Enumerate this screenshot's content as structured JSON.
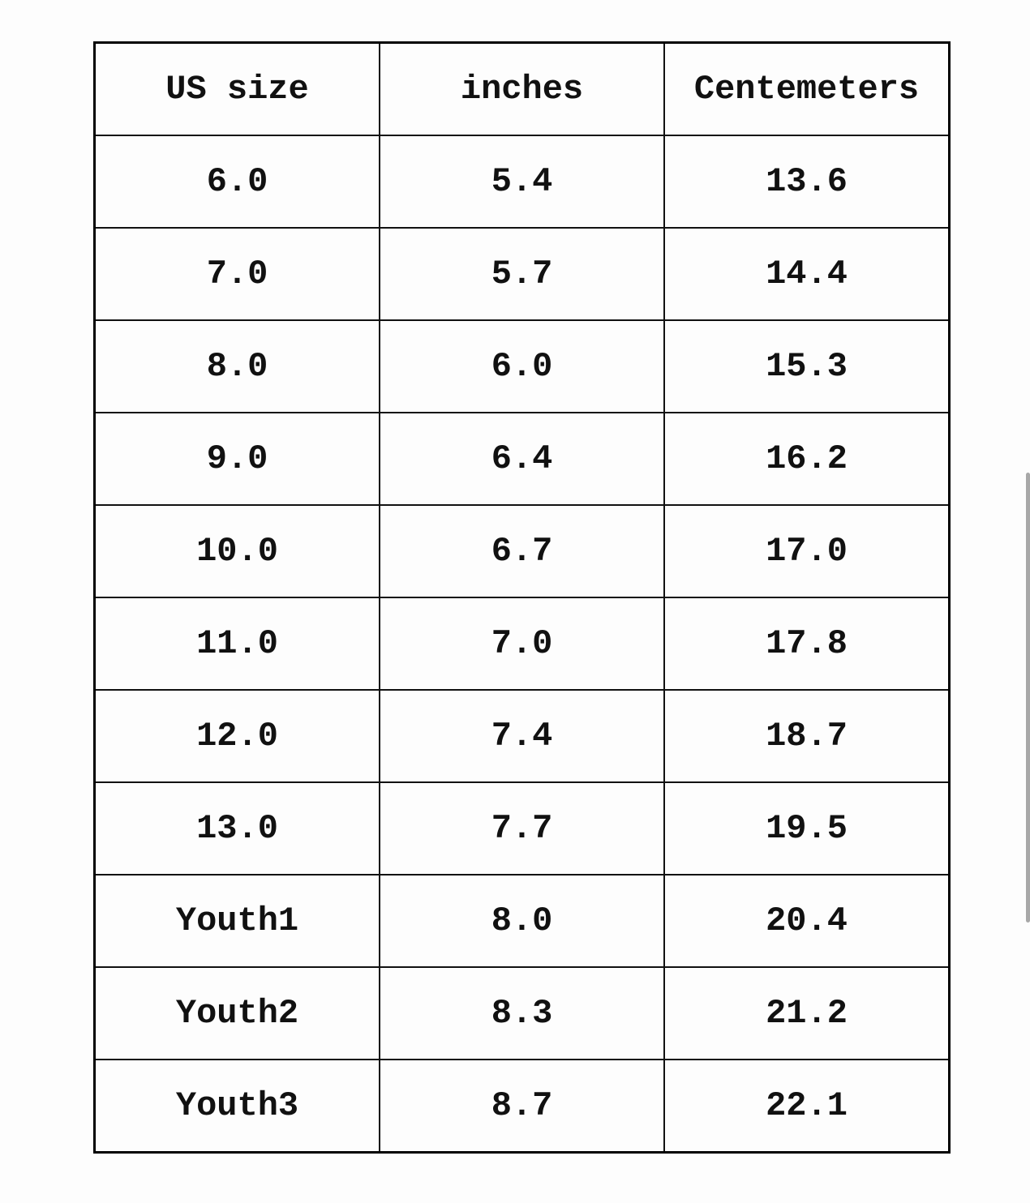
{
  "table": {
    "headers": [
      "US size",
      "inches",
      "Centemeters"
    ],
    "rows": [
      [
        "6.0",
        "5.4",
        "13.6"
      ],
      [
        "7.0",
        "5.7",
        "14.4"
      ],
      [
        "8.0",
        "6.0",
        "15.3"
      ],
      [
        "9.0",
        "6.4",
        "16.2"
      ],
      [
        "10.0",
        "6.7",
        "17.0"
      ],
      [
        "11.0",
        "7.0",
        "17.8"
      ],
      [
        "12.0",
        "7.4",
        "18.7"
      ],
      [
        "13.0",
        "7.7",
        "19.5"
      ],
      [
        "Youth1",
        "8.0",
        "20.4"
      ],
      [
        "Youth2",
        "8.3",
        "21.2"
      ],
      [
        "Youth3",
        "8.7",
        "22.1"
      ]
    ]
  }
}
